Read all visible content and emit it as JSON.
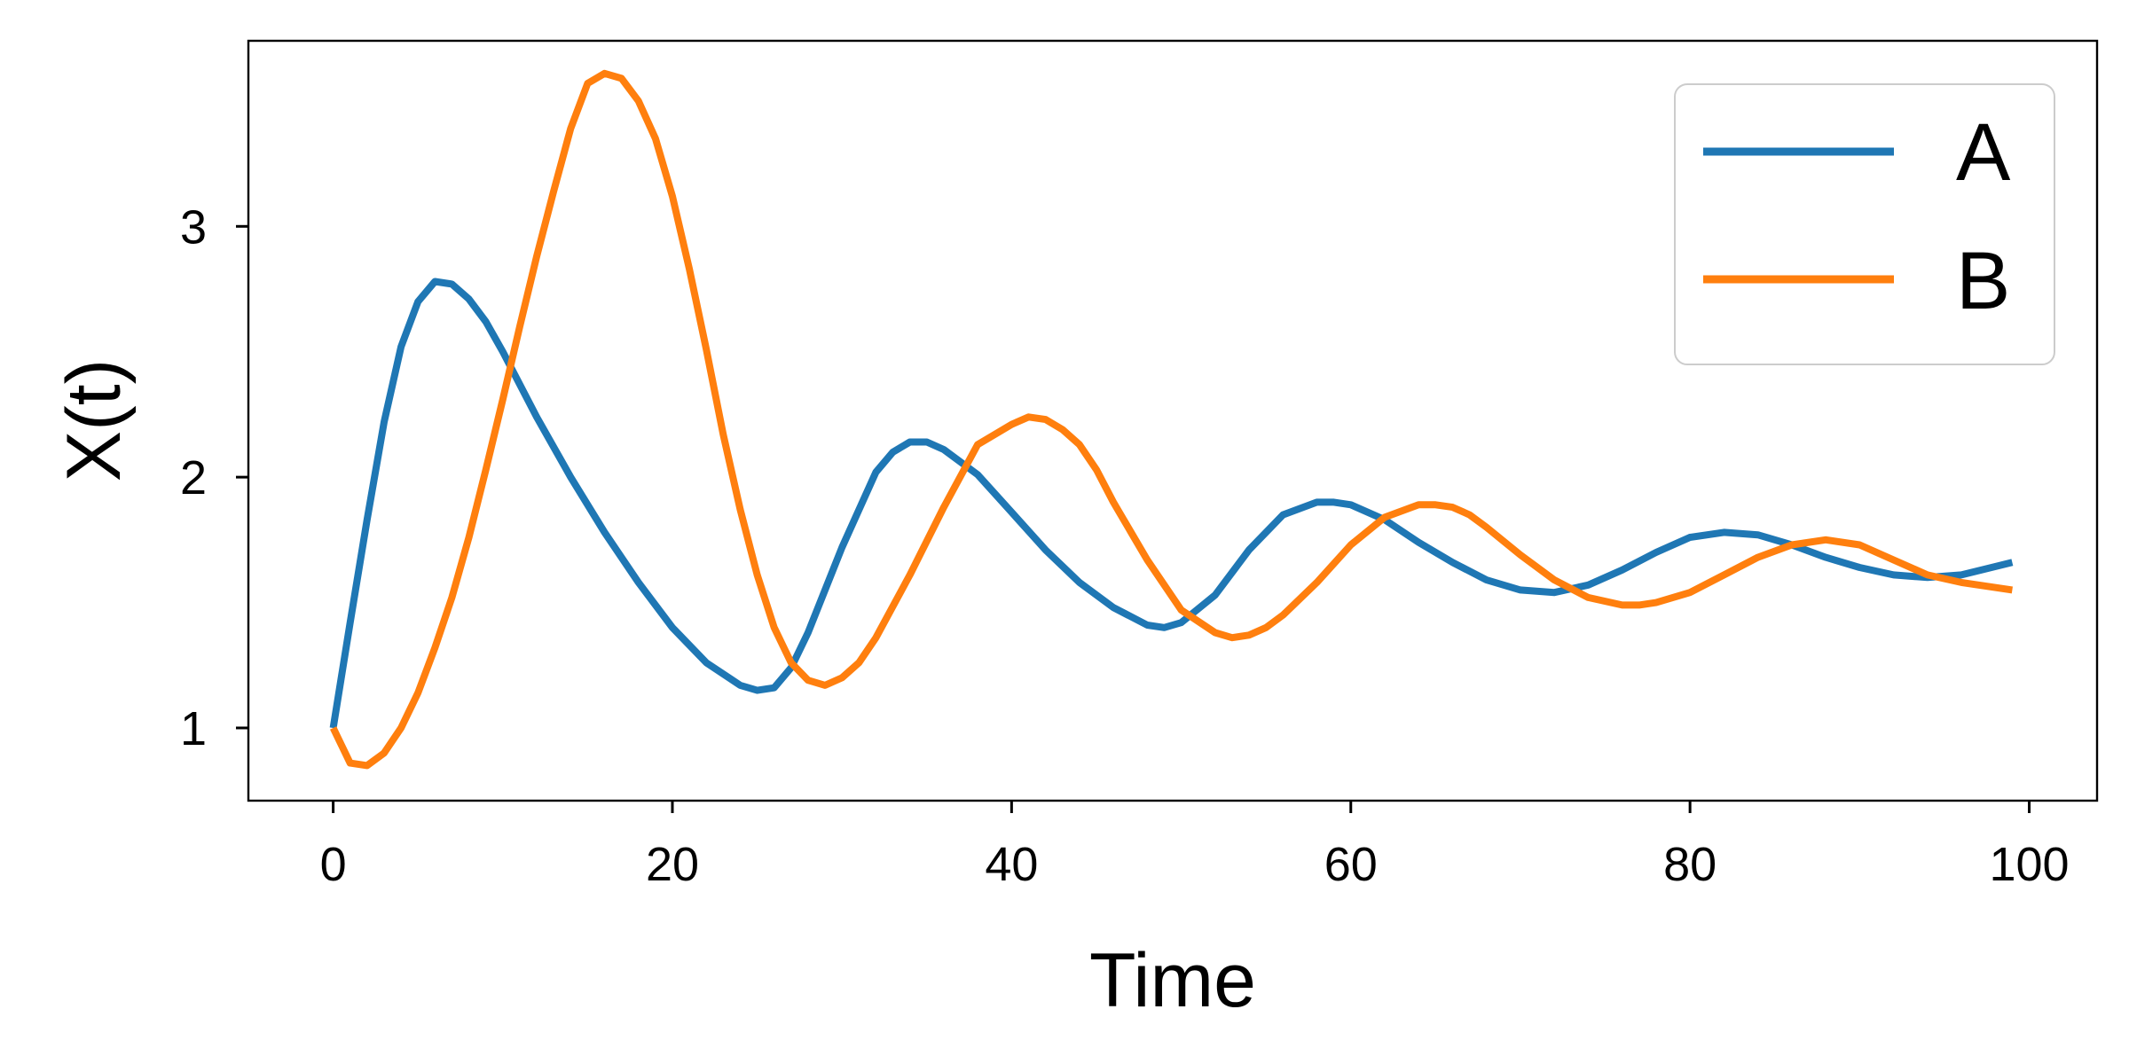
{
  "chart_data": {
    "type": "line",
    "xlabel": "Time",
    "ylabel": "X(t)",
    "xlim": [
      -5,
      104
    ],
    "ylim": [
      0.71,
      3.74
    ],
    "xticks": [
      0,
      20,
      40,
      60,
      80,
      100
    ],
    "xtick_labels": [
      "0",
      "20",
      "40",
      "60",
      "80",
      "100"
    ],
    "yticks": [
      1,
      2,
      3
    ],
    "ytick_labels": [
      "1",
      "2",
      "3"
    ],
    "grid": false,
    "legend_position": "top-right",
    "series": [
      {
        "name": "A",
        "color": "#1f77b4",
        "x": [
          0,
          1,
          2,
          3,
          4,
          5,
          6,
          7,
          8,
          9,
          10,
          12,
          14,
          16,
          18,
          20,
          22,
          24,
          25,
          26,
          27,
          28,
          30,
          32,
          33,
          34,
          35,
          36,
          38,
          40,
          42,
          44,
          46,
          48,
          49,
          50,
          52,
          54,
          56,
          58,
          59,
          60,
          62,
          64,
          66,
          68,
          70,
          72,
          74,
          76,
          78,
          80,
          82,
          84,
          86,
          88,
          90,
          92,
          94,
          96,
          99
        ],
        "y": [
          1.0,
          1.42,
          1.83,
          2.22,
          2.52,
          2.7,
          2.78,
          2.77,
          2.71,
          2.62,
          2.5,
          2.24,
          2.0,
          1.78,
          1.58,
          1.4,
          1.26,
          1.17,
          1.15,
          1.16,
          1.24,
          1.38,
          1.72,
          2.02,
          2.1,
          2.14,
          2.14,
          2.11,
          2.01,
          1.86,
          1.71,
          1.58,
          1.48,
          1.41,
          1.4,
          1.42,
          1.53,
          1.71,
          1.85,
          1.9,
          1.9,
          1.89,
          1.83,
          1.74,
          1.66,
          1.59,
          1.55,
          1.54,
          1.57,
          1.63,
          1.7,
          1.76,
          1.78,
          1.77,
          1.73,
          1.68,
          1.64,
          1.61,
          1.6,
          1.61,
          1.66
        ]
      },
      {
        "name": "B",
        "color": "#ff7f0e",
        "x": [
          0,
          1,
          2,
          3,
          4,
          5,
          6,
          7,
          8,
          9,
          10,
          11,
          12,
          13,
          14,
          15,
          16,
          17,
          18,
          19,
          20,
          21,
          22,
          23,
          24,
          25,
          26,
          27,
          28,
          29,
          30,
          31,
          32,
          34,
          36,
          38,
          40,
          41,
          42,
          43,
          44,
          45,
          46,
          48,
          50,
          52,
          53,
          54,
          55,
          56,
          58,
          60,
          62,
          64,
          65,
          66,
          67,
          68,
          70,
          72,
          74,
          76,
          77,
          78,
          80,
          82,
          84,
          86,
          88,
          90,
          92,
          94,
          96,
          99
        ],
        "y": [
          1.0,
          0.86,
          0.85,
          0.9,
          1.0,
          1.14,
          1.32,
          1.52,
          1.76,
          2.03,
          2.31,
          2.6,
          2.88,
          3.14,
          3.39,
          3.57,
          3.61,
          3.59,
          3.5,
          3.35,
          3.12,
          2.83,
          2.51,
          2.17,
          1.87,
          1.61,
          1.4,
          1.26,
          1.19,
          1.17,
          1.2,
          1.26,
          1.36,
          1.61,
          1.88,
          2.13,
          2.21,
          2.24,
          2.23,
          2.19,
          2.13,
          2.03,
          1.9,
          1.67,
          1.47,
          1.38,
          1.36,
          1.37,
          1.4,
          1.45,
          1.58,
          1.73,
          1.84,
          1.89,
          1.89,
          1.88,
          1.85,
          1.8,
          1.69,
          1.59,
          1.52,
          1.49,
          1.49,
          1.5,
          1.54,
          1.61,
          1.68,
          1.73,
          1.75,
          1.73,
          1.67,
          1.61,
          1.58,
          1.55
        ]
      }
    ]
  }
}
